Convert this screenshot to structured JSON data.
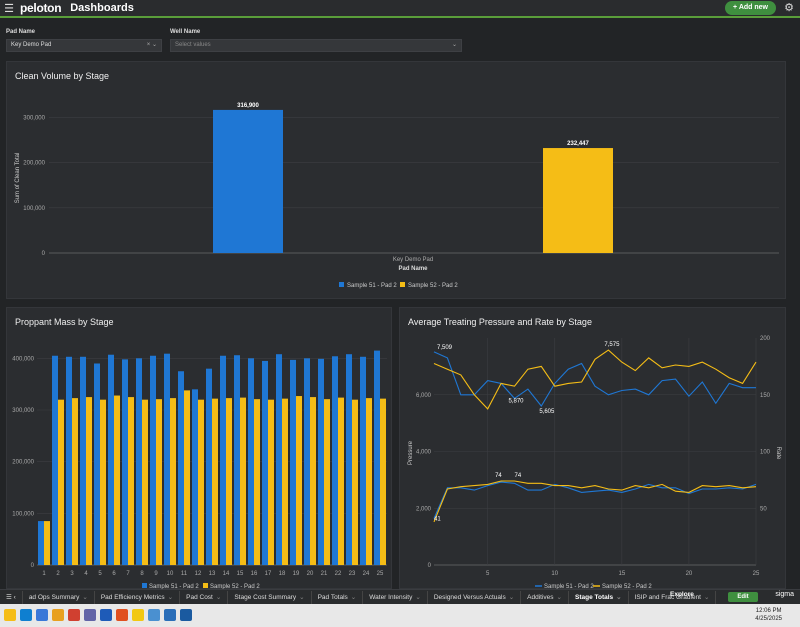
{
  "app": {
    "title": "Dashboards",
    "logo": "peloton",
    "add_new": "+ Add new"
  },
  "filters": {
    "pad_label": "Pad Name",
    "pad_value": "Key Demo Pad",
    "well_label": "Well Name",
    "well_placeholder": "Select values"
  },
  "colors": {
    "blue": "#1f77d4",
    "yellow": "#f5bd16"
  },
  "chart_data": [
    {
      "type": "bar",
      "title": "Clean Volume by Stage",
      "categories": [
        "Key Demo Pad"
      ],
      "xlabel": "Pad Name",
      "ylabel": "Sum of Clean Total",
      "ylim": [
        0,
        330000
      ],
      "yticks": [
        "0",
        "100,000",
        "200,000",
        "300,000"
      ],
      "series": [
        {
          "name": "Sample 51 - Pad 2",
          "values": [
            316900
          ],
          "label": "316,900"
        },
        {
          "name": "Sample 52 - Pad 2",
          "values": [
            232447
          ],
          "label": "232,447"
        }
      ]
    },
    {
      "type": "bar",
      "title": "Proppant Mass by Stage",
      "categories": [
        "1",
        "2",
        "3",
        "4",
        "5",
        "6",
        "7",
        "8",
        "9",
        "10",
        "11",
        "12",
        "13",
        "14",
        "15",
        "16",
        "17",
        "18",
        "19",
        "20",
        "21",
        "22",
        "23",
        "24",
        "25"
      ],
      "ylim": [
        0,
        420000
      ],
      "yticks": [
        "0",
        "100,000",
        "200,000",
        "300,000",
        "400,000"
      ],
      "series": [
        {
          "name": "Sample 51 - Pad 2",
          "values": [
            85000,
            405000,
            403000,
            403000,
            390000,
            407000,
            398000,
            400000,
            405000,
            409000,
            375000,
            340000,
            380000,
            405000,
            406000,
            400000,
            395000,
            408000,
            397000,
            400000,
            399000,
            404000,
            408000,
            403000,
            415000
          ]
        },
        {
          "name": "Sample 52 - Pad 2",
          "values": [
            85000,
            320000,
            323000,
            325000,
            320000,
            328000,
            325000,
            320000,
            321000,
            323000,
            338000,
            320000,
            322000,
            323000,
            324000,
            321000,
            320000,
            322000,
            327000,
            325000,
            321000,
            324000,
            320000,
            323000,
            322000
          ]
        }
      ]
    },
    {
      "type": "line",
      "title": "Average Treating Pressure and Rate by Stage",
      "x": [
        1,
        2,
        3,
        4,
        5,
        6,
        7,
        8,
        9,
        10,
        11,
        12,
        13,
        14,
        15,
        16,
        17,
        18,
        19,
        20,
        21,
        22,
        23,
        24,
        25
      ],
      "xticks": [
        "5",
        "10",
        "15",
        "20",
        "25"
      ],
      "ylabel": "Pressure",
      "y2label": "Rate",
      "ylim": [
        0,
        8000
      ],
      "y2lim": [
        0,
        200
      ],
      "yticks": [
        "0",
        "2,000",
        "4,000",
        "6,000"
      ],
      "y2ticks": [
        "50",
        "100",
        "150",
        "200"
      ],
      "annotations": [
        "7,509",
        "5,870",
        "5,605",
        "7,575",
        "74",
        "74",
        "41"
      ],
      "series": [
        {
          "name": "Sample 51 - Pad 2",
          "axis": "pressure",
          "values": [
            7509,
            7300,
            6000,
            6000,
            6500,
            6400,
            5870,
            6200,
            5605,
            6400,
            6900,
            7100,
            6300,
            6000,
            6150,
            6200,
            6000,
            6500,
            6550,
            5950,
            6450,
            5700,
            6400,
            6250,
            6250
          ]
        },
        {
          "name": "Sample 52 - Pad 2",
          "axis": "pressure",
          "values": [
            7100,
            6900,
            6700,
            6000,
            5500,
            6400,
            6300,
            6900,
            7000,
            6300,
            6400,
            6450,
            7250,
            7575,
            7150,
            6850,
            7300,
            6950,
            7050,
            7000,
            7150,
            6900,
            6600,
            6400,
            7150
          ]
        },
        {
          "name": "Sample 51 - Pad 2",
          "axis": "rate",
          "values": [
            41,
            68,
            68,
            66,
            70,
            73,
            72,
            66,
            66,
            71,
            68,
            64,
            65,
            66,
            64,
            67,
            71,
            68,
            68,
            63,
            67,
            67,
            68,
            67,
            71
          ]
        },
        {
          "name": "Sample 52 - Pad 2",
          "axis": "rate",
          "values": [
            38,
            67,
            69,
            70,
            71,
            74,
            74,
            72,
            72,
            70,
            70,
            68,
            70,
            67,
            66,
            70,
            68,
            71,
            65,
            64,
            70,
            69,
            70,
            68,
            69
          ]
        }
      ]
    }
  ],
  "tabs": [
    "ad Ops Summary",
    "Pad Efficiency Metrics",
    "Pad Cost",
    "Stage Cost Summary",
    "Pad Totals",
    "Water Intensity",
    "Designed Versus Actuals",
    "Additives",
    "Stage Totals",
    "ISIP and Frac Gradient"
  ],
  "active_tab": "Stage Totals",
  "bottom": {
    "explore": "Explore",
    "edit": "Edit",
    "sigma": "sigma"
  },
  "clock": {
    "time": "12:06 PM",
    "date": "4/25/2025"
  }
}
